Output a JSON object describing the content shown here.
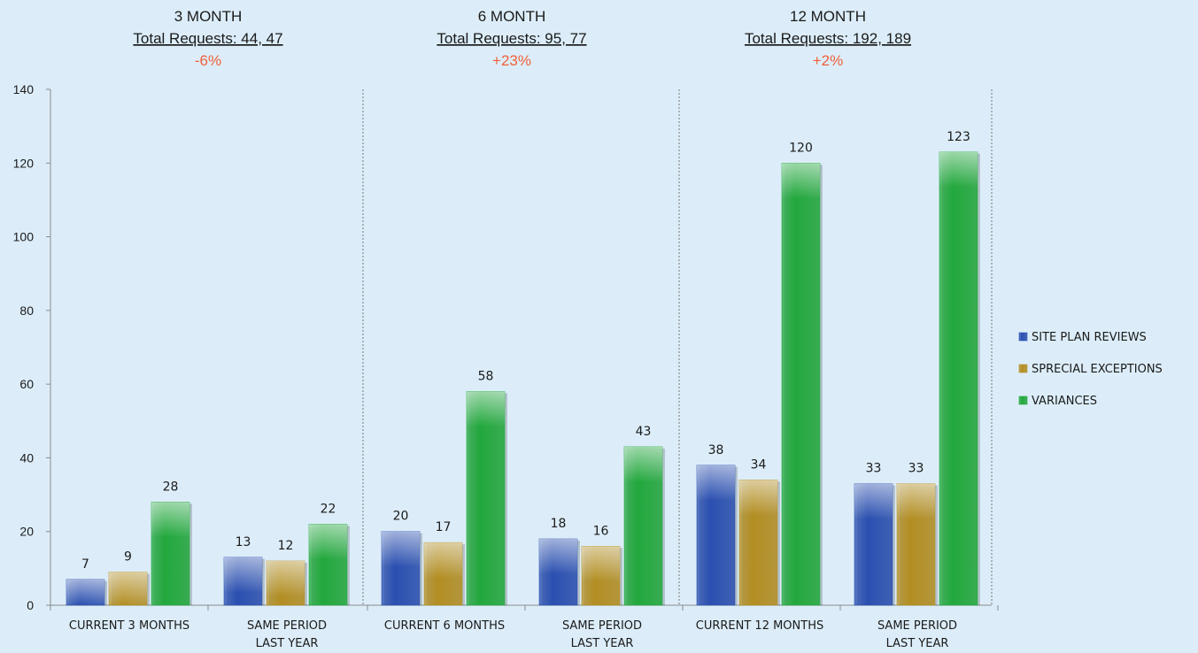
{
  "groups": [
    {
      "title": "3 MONTH",
      "subtitle": "Total Requests: 44, 47",
      "change": "-6%"
    },
    {
      "title": "6 MONTH",
      "subtitle": "Total Requests: 95, 77",
      "change": "+23%"
    },
    {
      "title": "12 MONTH",
      "subtitle": "Total Requests: 192, 189",
      "change": "+2%"
    }
  ],
  "colors": {
    "change": "#f0603a",
    "site_plan": "#2a4fb0",
    "special": "#b38e22",
    "variances": "#22a83c"
  },
  "chart_data": {
    "type": "bar",
    "categories": [
      [
        "CURRENT 3 MONTHS"
      ],
      [
        "SAME PERIOD",
        "LAST YEAR"
      ],
      [
        "CURRENT 6 MONTHS"
      ],
      [
        "SAME PERIOD",
        "LAST YEAR"
      ],
      [
        "CURRENT 12 MONTHS"
      ],
      [
        "SAME PERIOD",
        "LAST YEAR"
      ]
    ],
    "series": [
      {
        "name": "SITE PLAN REVIEWS",
        "values": [
          7,
          13,
          20,
          18,
          38,
          33
        ]
      },
      {
        "name": "SPRECIAL EXCEPTIONS",
        "values": [
          9,
          12,
          17,
          16,
          34,
          33
        ]
      },
      {
        "name": "VARIANCES",
        "values": [
          28,
          22,
          58,
          43,
          120,
          123
        ]
      }
    ],
    "yticks": [
      0,
      20,
      40,
      60,
      80,
      100,
      120,
      140
    ],
    "ylim": [
      0,
      140
    ],
    "legend_position": "right",
    "grid": false
  }
}
